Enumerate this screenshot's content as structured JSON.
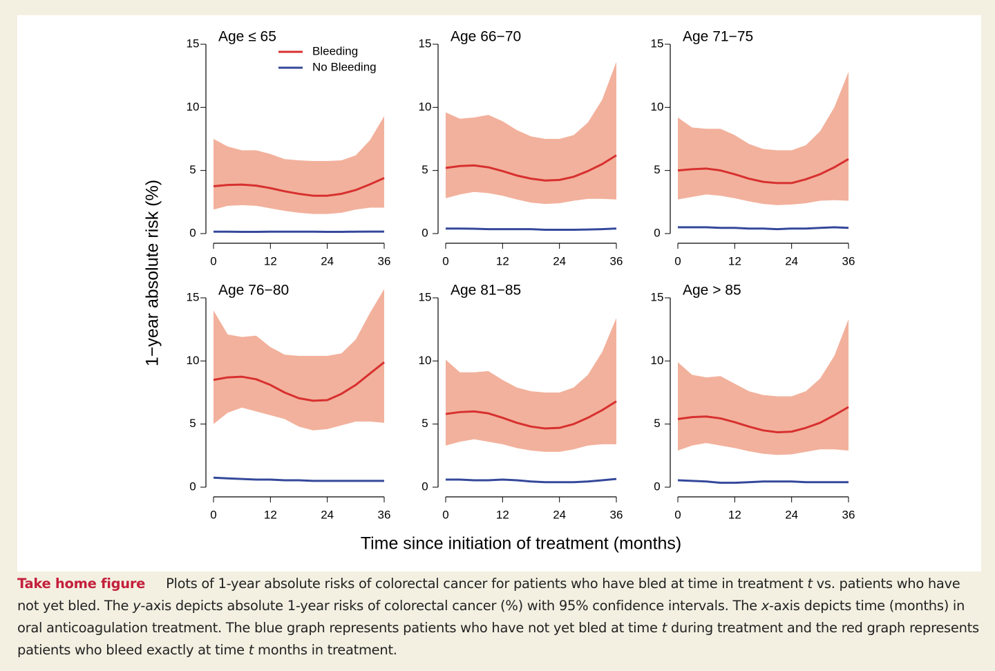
{
  "y_label": "1−year absolute risk (%)",
  "x_label": "Time since initiation of treatment (months)",
  "caption": {
    "label": "Take home figure",
    "parts": [
      "Plots of 1-year absolute risks of colorectal cancer for patients who have bled at time in treatment ",
      "t",
      " vs. patients who have not yet bled. The ",
      "y",
      "-axis depicts absolute 1-year risks of colorectal cancer (%) with 95% confidence intervals. The ",
      "x",
      "-axis depicts time (months) in oral anticoagulation treatment. The blue graph represents patients who have not yet bled at time ",
      "t",
      " during treatment and the red graph represents patients who bleed exactly at time ",
      "t",
      " months in treatment."
    ]
  },
  "chart_data": [
    {
      "type": "line",
      "title": "Age ≤ 65",
      "x": [
        0,
        3,
        6,
        9,
        12,
        15,
        18,
        21,
        24,
        27,
        30,
        33,
        36
      ],
      "xlim": [
        0,
        36
      ],
      "xticks": [
        0,
        12,
        24,
        36
      ],
      "ylim": [
        0,
        15
      ],
      "yticks": [
        0,
        5,
        10,
        15
      ],
      "legend": "top",
      "series": [
        {
          "name": "Bleeding",
          "color": "#d7302f",
          "band_color": "#f2b19c",
          "values": [
            3.75,
            3.85,
            3.88,
            3.8,
            3.6,
            3.35,
            3.15,
            3.0,
            3.0,
            3.15,
            3.45,
            3.9,
            4.4
          ],
          "upper": [
            7.5,
            6.9,
            6.6,
            6.6,
            6.3,
            5.9,
            5.8,
            5.75,
            5.75,
            5.8,
            6.2,
            7.4,
            9.3
          ],
          "lower": [
            1.9,
            2.2,
            2.25,
            2.2,
            2.0,
            1.8,
            1.65,
            1.55,
            1.55,
            1.65,
            1.9,
            2.05,
            2.05
          ]
        },
        {
          "name": "No Bleeding",
          "color": "#34489a",
          "values": [
            0.15,
            0.15,
            0.14,
            0.14,
            0.15,
            0.15,
            0.15,
            0.15,
            0.14,
            0.14,
            0.15,
            0.16,
            0.16
          ]
        }
      ]
    },
    {
      "type": "line",
      "title": "Age 66−70",
      "x": [
        0,
        3,
        6,
        9,
        12,
        15,
        18,
        21,
        24,
        27,
        30,
        33,
        36
      ],
      "xlim": [
        0,
        36
      ],
      "xticks": [
        0,
        12,
        24,
        36
      ],
      "ylim": [
        0,
        15
      ],
      "yticks": [
        0,
        5,
        10,
        15
      ],
      "series": [
        {
          "color": "#d7302f",
          "band_color": "#f2b19c",
          "values": [
            5.2,
            5.35,
            5.4,
            5.25,
            4.95,
            4.6,
            4.35,
            4.2,
            4.25,
            4.5,
            4.95,
            5.5,
            6.2
          ],
          "upper": [
            9.6,
            9.1,
            9.2,
            9.4,
            8.9,
            8.2,
            7.7,
            7.5,
            7.5,
            7.8,
            8.8,
            10.6,
            13.6
          ],
          "lower": [
            2.8,
            3.1,
            3.3,
            3.2,
            3.0,
            2.7,
            2.45,
            2.35,
            2.4,
            2.6,
            2.75,
            2.75,
            2.7
          ]
        },
        {
          "color": "#34489a",
          "values": [
            0.4,
            0.4,
            0.38,
            0.35,
            0.35,
            0.35,
            0.35,
            0.3,
            0.3,
            0.3,
            0.32,
            0.35,
            0.4
          ]
        }
      ]
    },
    {
      "type": "line",
      "title": "Age 71−75",
      "x": [
        0,
        3,
        6,
        9,
        12,
        15,
        18,
        21,
        24,
        27,
        30,
        33,
        36
      ],
      "xlim": [
        0,
        36
      ],
      "xticks": [
        0,
        12,
        24,
        36
      ],
      "ylim": [
        0,
        15
      ],
      "yticks": [
        0,
        5,
        10,
        15
      ],
      "series": [
        {
          "color": "#d7302f",
          "band_color": "#f2b19c",
          "values": [
            5.0,
            5.1,
            5.15,
            5.0,
            4.7,
            4.35,
            4.1,
            4.0,
            4.0,
            4.3,
            4.7,
            5.25,
            5.9
          ],
          "upper": [
            9.2,
            8.4,
            8.3,
            8.3,
            7.8,
            7.1,
            6.7,
            6.6,
            6.6,
            7.0,
            8.1,
            10.0,
            12.8
          ],
          "lower": [
            2.7,
            2.9,
            3.1,
            3.0,
            2.8,
            2.55,
            2.35,
            2.25,
            2.3,
            2.4,
            2.6,
            2.65,
            2.6
          ]
        },
        {
          "color": "#34489a",
          "values": [
            0.5,
            0.5,
            0.5,
            0.45,
            0.45,
            0.4,
            0.4,
            0.35,
            0.4,
            0.4,
            0.45,
            0.5,
            0.45
          ]
        }
      ]
    },
    {
      "type": "line",
      "title": "Age 76−80",
      "x": [
        0,
        3,
        6,
        9,
        12,
        15,
        18,
        21,
        24,
        27,
        30,
        33,
        36
      ],
      "xlim": [
        0,
        36
      ],
      "xticks": [
        0,
        12,
        24,
        36
      ],
      "ylim": [
        0,
        15
      ],
      "yticks": [
        0,
        5,
        10,
        15
      ],
      "series": [
        {
          "color": "#d7302f",
          "band_color": "#f2b19c",
          "values": [
            8.5,
            8.7,
            8.75,
            8.55,
            8.1,
            7.5,
            7.05,
            6.85,
            6.9,
            7.4,
            8.1,
            9.0,
            9.9
          ],
          "upper": [
            14.0,
            12.1,
            11.9,
            12.0,
            11.1,
            10.5,
            10.4,
            10.4,
            10.4,
            10.6,
            11.7,
            13.8,
            15.7
          ],
          "lower": [
            5.0,
            5.9,
            6.3,
            6.0,
            5.7,
            5.4,
            4.8,
            4.5,
            4.6,
            4.9,
            5.2,
            5.2,
            5.1
          ]
        },
        {
          "color": "#34489a",
          "values": [
            0.75,
            0.7,
            0.65,
            0.6,
            0.6,
            0.55,
            0.55,
            0.5,
            0.5,
            0.5,
            0.5,
            0.5,
            0.5
          ]
        }
      ]
    },
    {
      "type": "line",
      "title": "Age 81−85",
      "x": [
        0,
        3,
        6,
        9,
        12,
        15,
        18,
        21,
        24,
        27,
        30,
        33,
        36
      ],
      "xlim": [
        0,
        36
      ],
      "xticks": [
        0,
        12,
        24,
        36
      ],
      "ylim": [
        0,
        15
      ],
      "yticks": [
        0,
        5,
        10,
        15
      ],
      "series": [
        {
          "color": "#d7302f",
          "band_color": "#f2b19c",
          "values": [
            5.8,
            5.95,
            6.0,
            5.85,
            5.5,
            5.1,
            4.8,
            4.65,
            4.7,
            5.0,
            5.5,
            6.1,
            6.8
          ],
          "upper": [
            10.1,
            9.1,
            9.1,
            9.2,
            8.5,
            7.9,
            7.6,
            7.5,
            7.5,
            7.9,
            8.9,
            10.7,
            13.4
          ],
          "lower": [
            3.3,
            3.6,
            3.8,
            3.6,
            3.4,
            3.1,
            2.9,
            2.8,
            2.8,
            3.0,
            3.3,
            3.4,
            3.4
          ]
        },
        {
          "color": "#34489a",
          "values": [
            0.6,
            0.6,
            0.55,
            0.55,
            0.6,
            0.55,
            0.45,
            0.4,
            0.4,
            0.4,
            0.45,
            0.55,
            0.65
          ]
        }
      ]
    },
    {
      "type": "line",
      "title": "Age > 85",
      "x": [
        0,
        3,
        6,
        9,
        12,
        15,
        18,
        21,
        24,
        27,
        30,
        33,
        36
      ],
      "xlim": [
        0,
        36
      ],
      "xticks": [
        0,
        12,
        24,
        36
      ],
      "ylim": [
        0,
        15
      ],
      "yticks": [
        0,
        5,
        10,
        15
      ],
      "series": [
        {
          "color": "#d7302f",
          "band_color": "#f2b19c",
          "values": [
            5.4,
            5.55,
            5.6,
            5.45,
            5.15,
            4.8,
            4.5,
            4.35,
            4.4,
            4.7,
            5.1,
            5.7,
            6.35
          ],
          "upper": [
            9.9,
            8.9,
            8.7,
            8.8,
            8.2,
            7.6,
            7.3,
            7.2,
            7.2,
            7.6,
            8.6,
            10.4,
            13.3
          ],
          "lower": [
            2.9,
            3.3,
            3.5,
            3.3,
            3.1,
            2.85,
            2.65,
            2.55,
            2.6,
            2.8,
            3.0,
            3.0,
            2.9
          ]
        },
        {
          "color": "#34489a",
          "values": [
            0.55,
            0.5,
            0.45,
            0.35,
            0.35,
            0.4,
            0.45,
            0.45,
            0.45,
            0.4,
            0.4,
            0.4,
            0.4
          ]
        }
      ]
    }
  ]
}
